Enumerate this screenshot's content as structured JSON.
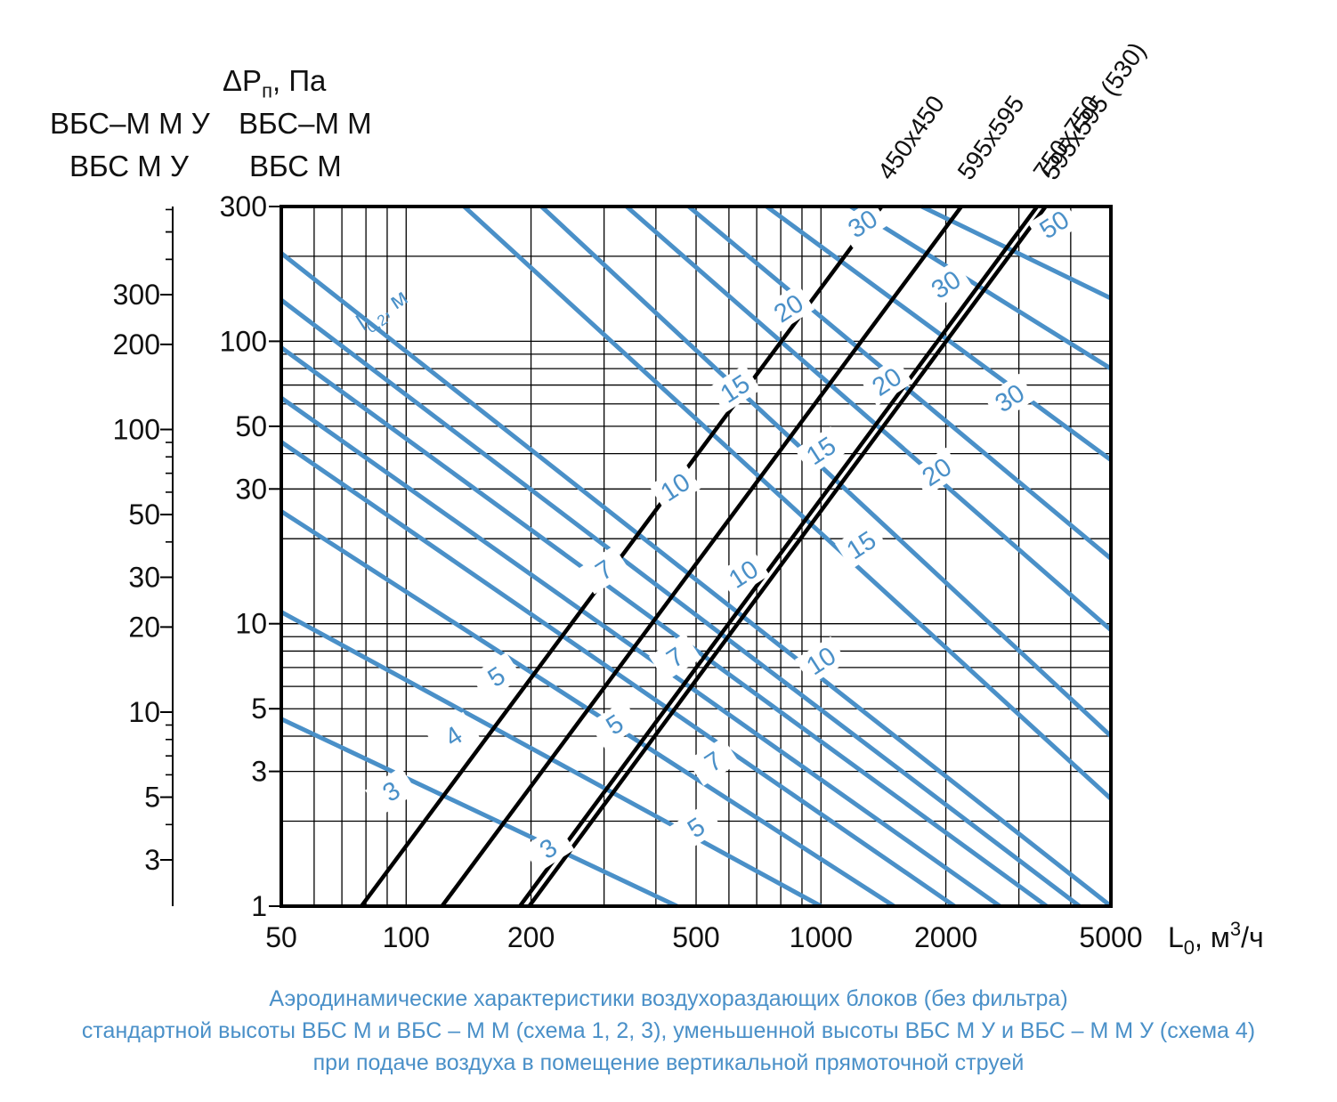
{
  "colors": {
    "frame": "#000000",
    "grid": "#000000",
    "throw_lines": "#4a90c8",
    "caption": "#4a90c8"
  },
  "header": {
    "ylabel_main": "ΔPп, Па",
    "ylabel_main_sym": "ΔP",
    "ylabel_main_sub": "п",
    "ylabel_main_unit": ", Па",
    "col_left_line1": "ВБС–М М У",
    "col_left_line2": "ВБС М У",
    "col_right_line1": "ВБС–М М",
    "col_right_line2": "ВБС М"
  },
  "chart_data": {
    "type": "line",
    "xscale": "log",
    "yscale": "log",
    "xlim": [
      50,
      5000
    ],
    "ylim": [
      1,
      300
    ],
    "xlabel": "L0, м3/ч",
    "xlabel_main": "L",
    "xlabel_sub": "0",
    "xlabel_unit": ", м",
    "xlabel_sup": "3",
    "xlabel_tail": "/ч",
    "x_ticks": [
      50,
      100,
      200,
      500,
      1000,
      2000,
      5000
    ],
    "x_tick_labels": [
      "50",
      "100",
      "200",
      "500",
      "1000",
      "2000",
      "5000"
    ],
    "y_ticks": [
      1,
      3,
      5,
      10,
      30,
      50,
      100,
      300
    ],
    "y_tick_labels": [
      "1",
      "3",
      "5",
      "10",
      "30",
      "50",
      "100",
      "300"
    ],
    "y2_ticks": [
      3,
      5,
      10,
      20,
      30,
      50,
      100,
      200,
      300
    ],
    "y2_tick_labels": [
      "3",
      "5",
      "10",
      "20",
      "30",
      "50",
      "100",
      "200",
      "300"
    ],
    "grid": true,
    "series": [
      {
        "name": "450x450",
        "x": [
          78,
          1400
        ],
        "y": [
          1,
          300
        ]
      },
      {
        "name": "595x595",
        "x": [
          122,
          2180
        ],
        "y": [
          1,
          300
        ]
      },
      {
        "name": "750x750",
        "x": [
          188,
          3320
        ],
        "y": [
          1,
          300
        ]
      },
      {
        "name": "595x595 (530)",
        "x": [
          198,
          3480
        ],
        "y": [
          1,
          300
        ]
      }
    ],
    "throw_lines_label": "l0,2, м",
    "throw_lines_label_main": "l",
    "throw_lines_label_sub": "0,2",
    "throw_lines_label_unit": ", м",
    "throw_lines": [
      {
        "x": [
          50,
          450
        ],
        "y": [
          4.6,
          1.0
        ]
      },
      {
        "x": [
          50,
          1000
        ],
        "y": [
          11.0,
          1.0
        ]
      },
      {
        "x": [
          50,
          1500
        ],
        "y": [
          25.0,
          1.0
        ]
      },
      {
        "x": [
          50,
          2100
        ],
        "y": [
          44.0,
          1.0
        ]
      },
      {
        "x": [
          50,
          2700
        ],
        "y": [
          63.0,
          1.0
        ]
      },
      {
        "x": [
          50,
          3500
        ],
        "y": [
          95.0,
          1.0
        ]
      },
      {
        "x": [
          50,
          4200
        ],
        "y": [
          140.0,
          1.0
        ]
      },
      {
        "x": [
          50,
          5000
        ],
        "y": [
          205.0,
          1.0
        ]
      },
      {
        "x": [
          138,
          5000
        ],
        "y": [
          300.0,
          2.4
        ]
      },
      {
        "x": [
          212,
          5000
        ],
        "y": [
          300.0,
          4.0
        ]
      },
      {
        "x": [
          340,
          5000
        ],
        "y": [
          300.0,
          9.5
        ]
      },
      {
        "x": [
          480,
          5000
        ],
        "y": [
          300.0,
          17.0
        ]
      },
      {
        "x": [
          740,
          5000
        ],
        "y": [
          300.0,
          38.0
        ]
      },
      {
        "x": [
          1180,
          5000
        ],
        "y": [
          300.0,
          80.0
        ]
      },
      {
        "x": [
          1750,
          5000
        ],
        "y": [
          300.0,
          142.0
        ]
      }
    ],
    "throw_labels": [
      {
        "text": "3",
        "x": 92,
        "y": 2.55
      },
      {
        "text": "4",
        "x": 130,
        "y": 4.0
      },
      {
        "text": "5",
        "x": 165,
        "y": 6.5
      },
      {
        "text": "7",
        "x": 300,
        "y": 15.5
      },
      {
        "text": "10",
        "x": 445,
        "y": 30.5
      },
      {
        "text": "15",
        "x": 620,
        "y": 68.0
      },
      {
        "text": "20",
        "x": 835,
        "y": 131.0
      },
      {
        "text": "30",
        "x": 1260,
        "y": 261.0
      },
      {
        "text": "3",
        "x": 220,
        "y": 1.6
      },
      {
        "text": "5",
        "x": 500,
        "y": 1.9
      },
      {
        "text": "5",
        "x": 318,
        "y": 4.4
      },
      {
        "text": "7",
        "x": 550,
        "y": 3.25
      },
      {
        "text": "7",
        "x": 445,
        "y": 7.6
      },
      {
        "text": "10",
        "x": 1000,
        "y": 7.4
      },
      {
        "text": "10",
        "x": 650,
        "y": 15.0
      },
      {
        "text": "15",
        "x": 1250,
        "y": 19.0
      },
      {
        "text": "15",
        "x": 1000,
        "y": 41.0
      },
      {
        "text": "20",
        "x": 1900,
        "y": 34.5
      },
      {
        "text": "20",
        "x": 1440,
        "y": 72.0
      },
      {
        "text": "30",
        "x": 2850,
        "y": 63.0
      },
      {
        "text": "30",
        "x": 2000,
        "y": 159.0
      },
      {
        "text": "50",
        "x": 3650,
        "y": 259.0
      }
    ]
  },
  "caption": {
    "line1": "Аэродинамические характеристики воздухораздающих блоков (без фильтра)",
    "line2": "стандартной высоты ВБС М и ВБС – М М (схема 1, 2, 3), уменьшенной высоты ВБС М У и ВБС – М М У (схема 4)",
    "line3": "при подаче воздуха в помещение вертикальной прямоточной струей"
  }
}
